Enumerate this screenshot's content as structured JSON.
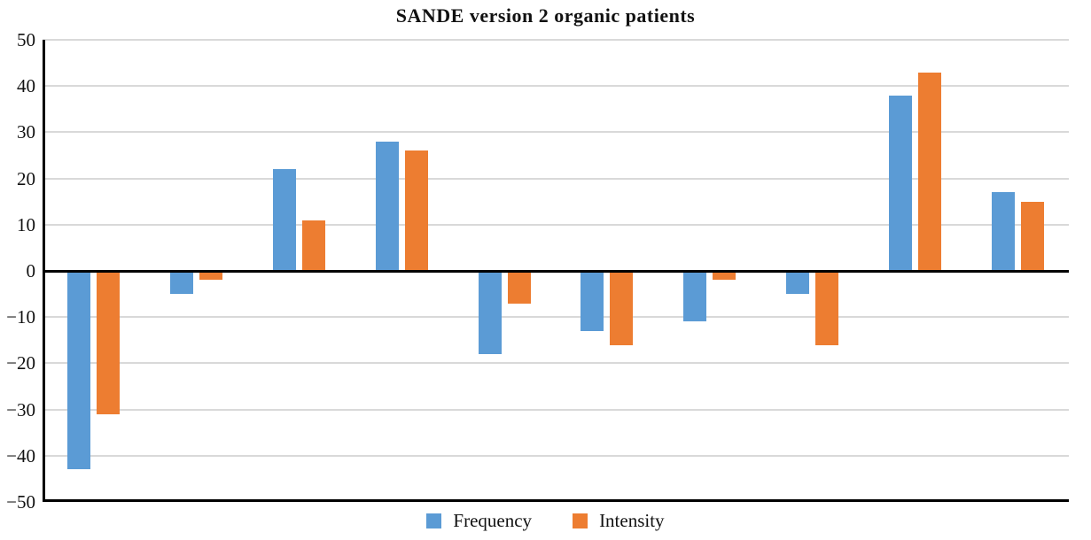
{
  "chart_data": {
    "type": "bar",
    "title": "SANDE version 2 organic patients",
    "num_groups": 10,
    "series": [
      {
        "name": "Frequency",
        "color": "#5B9BD5",
        "values": [
          -43,
          -5,
          22,
          28,
          -18,
          -13,
          -11,
          -5,
          38,
          17
        ]
      },
      {
        "name": "Intensity",
        "color": "#ED7D31",
        "values": [
          -31,
          -2,
          11,
          26,
          -7,
          -16,
          -2,
          -16,
          43,
          15
        ]
      }
    ],
    "ylim": [
      -50,
      50
    ],
    "ytick_step": 10,
    "ytick_values": [
      50,
      40,
      30,
      20,
      10,
      0,
      -10,
      -20,
      -30,
      -40,
      -50
    ],
    "ytick_labels": [
      "50",
      "40",
      "30",
      "20",
      "10",
      "0",
      "−10",
      "−20",
      "−30",
      "−40",
      "−50"
    ],
    "x_tick_labels_visible": false,
    "grid": "horizontal",
    "legend_position": "bottom"
  },
  "colors": {
    "frequency": "#5B9BD5",
    "intensity": "#ED7D31",
    "gridline": "#D9D9D9",
    "axis": "#000000",
    "background": "#FFFFFF"
  }
}
